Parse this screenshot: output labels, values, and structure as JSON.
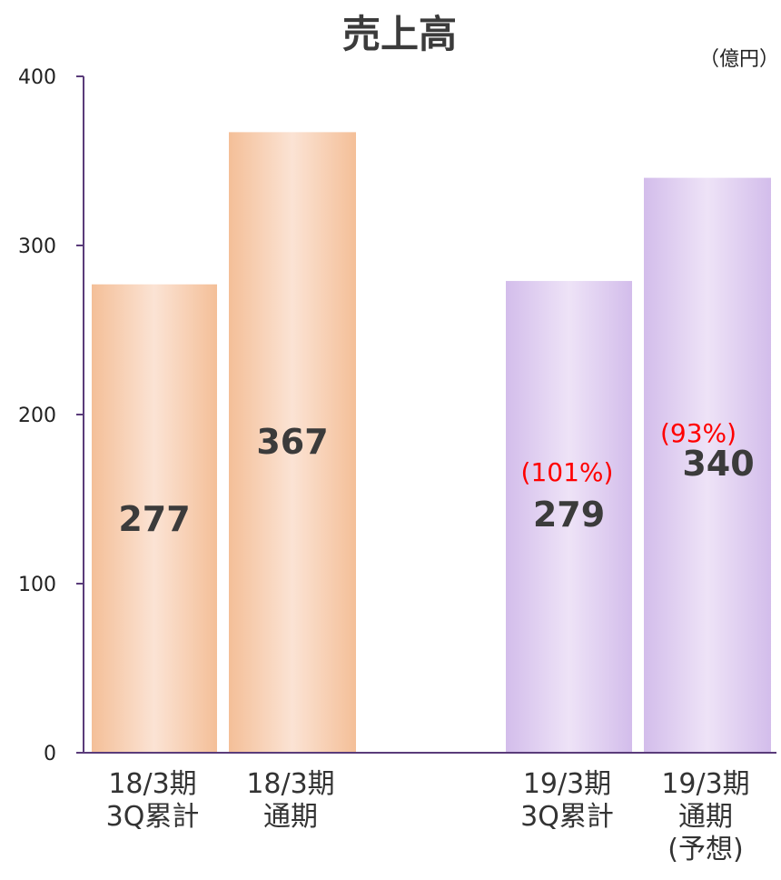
{
  "chart_data": {
    "type": "bar",
    "title": "売上高",
    "unit": "（億円）",
    "ylim": [
      0,
      400
    ],
    "yticks": [
      0,
      100,
      200,
      300,
      400
    ],
    "grid": false,
    "colors": {
      "fy18": "#f6c4a1",
      "fy19": "#d9c6ee",
      "percent": "#ff0000",
      "value": "#3b3b3b",
      "axis": "#5a3c7a"
    },
    "bars": [
      {
        "label_lines": [
          "18/3期",
          "3Q累計"
        ],
        "value": 277,
        "value_label": "277",
        "percent_label": "",
        "group": "fy18"
      },
      {
        "label_lines": [
          "18/3期",
          "通期"
        ],
        "value": 367,
        "value_label": "367",
        "percent_label": "",
        "group": "fy18"
      },
      {
        "label_lines": [
          "19/3期",
          "3Q累計"
        ],
        "value": 279,
        "value_label": "279",
        "percent_label": "(101%)",
        "group": "fy19"
      },
      {
        "label_lines": [
          "19/3期",
          "通期",
          "(予想)"
        ],
        "value": 340,
        "value_label": "340",
        "percent_label": "(93%)",
        "group": "fy19"
      }
    ]
  }
}
